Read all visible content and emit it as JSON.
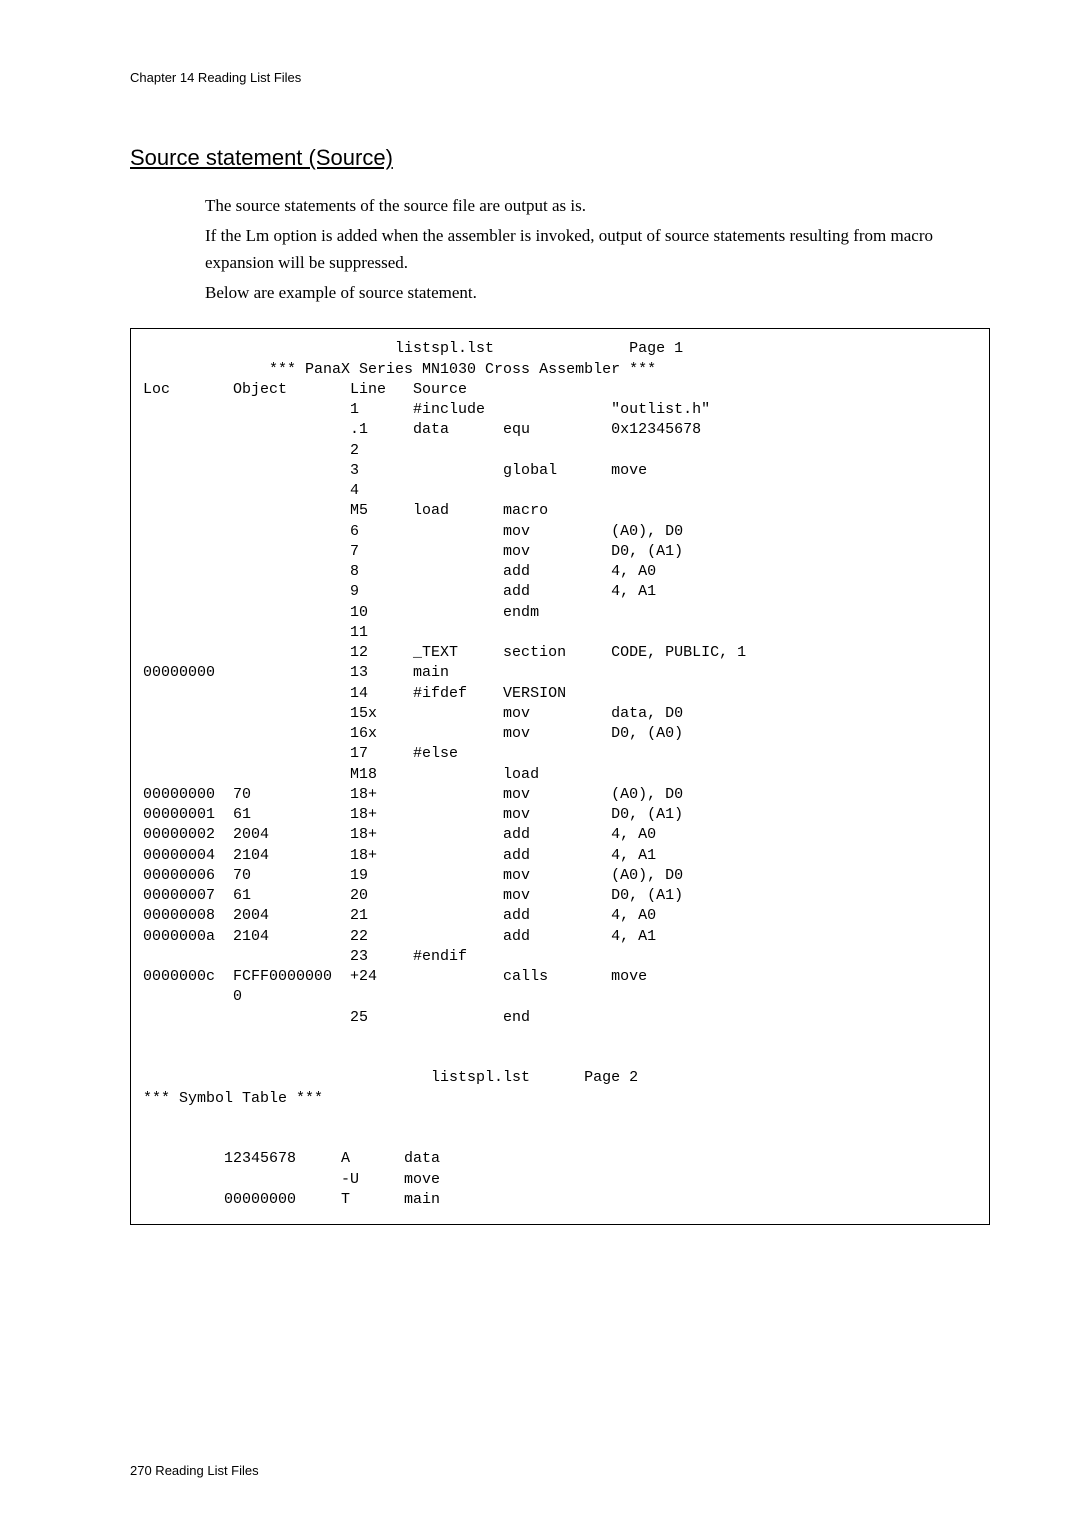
{
  "chapter_header": "Chapter 14  Reading List Files",
  "section_title": "Source statement (Source)",
  "paragraphs": {
    "p1": "The source statements of the source file are output as is.",
    "p2": "If the Lm option is added when the assembler is invoked, output of source statements resulting from macro expansion will be suppressed.",
    "p3": "Below are example of source statement."
  },
  "listing": {
    "header_top_left": "listspl.lst",
    "header_top_right": "Page 1",
    "header_series": "*** PanaX Series MN1030 Cross Assembler ***",
    "col_headers": {
      "loc": "Loc",
      "object": "Object",
      "line": "Line",
      "source": "Source"
    },
    "rows": [
      {
        "loc": "",
        "obj": "",
        "line": "1",
        "src": "#include",
        "op": "",
        "arg": "\"outlist.h\""
      },
      {
        "loc": "",
        "obj": "",
        "line": ".1",
        "src": "data",
        "op": "equ",
        "arg": "0x12345678"
      },
      {
        "loc": "",
        "obj": "",
        "line": "2",
        "src": "",
        "op": "",
        "arg": ""
      },
      {
        "loc": "",
        "obj": "",
        "line": "3",
        "src": "",
        "op": "global",
        "arg": "move"
      },
      {
        "loc": "",
        "obj": "",
        "line": "4",
        "src": "",
        "op": "",
        "arg": ""
      },
      {
        "loc": "",
        "obj": "",
        "line": "M5",
        "src": "load",
        "op": "macro",
        "arg": ""
      },
      {
        "loc": "",
        "obj": "",
        "line": "6",
        "src": "",
        "op": "mov",
        "arg": "(A0), D0"
      },
      {
        "loc": "",
        "obj": "",
        "line": "7",
        "src": "",
        "op": "mov",
        "arg": "D0, (A1)"
      },
      {
        "loc": "",
        "obj": "",
        "line": "8",
        "src": "",
        "op": "add",
        "arg": "4, A0"
      },
      {
        "loc": "",
        "obj": "",
        "line": "9",
        "src": "",
        "op": "add",
        "arg": "4, A1"
      },
      {
        "loc": "",
        "obj": "",
        "line": "10",
        "src": "",
        "op": "endm",
        "arg": ""
      },
      {
        "loc": "",
        "obj": "",
        "line": "11",
        "src": "",
        "op": "",
        "arg": ""
      },
      {
        "loc": "",
        "obj": "",
        "line": "12",
        "src": "_TEXT",
        "op": "section",
        "arg": "CODE, PUBLIC, 1"
      },
      {
        "loc": "00000000",
        "obj": "",
        "line": "13",
        "src": "main",
        "op": "",
        "arg": ""
      },
      {
        "loc": "",
        "obj": "",
        "line": "14",
        "src": "#ifdef",
        "op": "VERSION",
        "arg": ""
      },
      {
        "loc": "",
        "obj": "",
        "line": "15x",
        "src": "",
        "op": "mov",
        "arg": "data, D0"
      },
      {
        "loc": "",
        "obj": "",
        "line": "16x",
        "src": "",
        "op": "mov",
        "arg": "D0, (A0)"
      },
      {
        "loc": "",
        "obj": "",
        "line": "17",
        "src": "#else",
        "op": "",
        "arg": ""
      },
      {
        "loc": "",
        "obj": "",
        "line": "M18",
        "src": "",
        "op": "load",
        "arg": ""
      },
      {
        "loc": "00000000",
        "obj": "70",
        "line": "18+",
        "src": "",
        "op": "mov",
        "arg": "(A0), D0"
      },
      {
        "loc": "00000001",
        "obj": "61",
        "line": "18+",
        "src": "",
        "op": "mov",
        "arg": "D0, (A1)"
      },
      {
        "loc": "00000002",
        "obj": "2004",
        "line": "18+",
        "src": "",
        "op": "add",
        "arg": "4, A0"
      },
      {
        "loc": "00000004",
        "obj": "2104",
        "line": "18+",
        "src": "",
        "op": "add",
        "arg": "4, A1"
      },
      {
        "loc": "00000006",
        "obj": "70",
        "line": "19",
        "src": "",
        "op": "mov",
        "arg": "(A0), D0"
      },
      {
        "loc": "00000007",
        "obj": "61",
        "line": "20",
        "src": "",
        "op": "mov",
        "arg": "D0, (A1)"
      },
      {
        "loc": "00000008",
        "obj": "2004",
        "line": "21",
        "src": "",
        "op": "add",
        "arg": "4, A0"
      },
      {
        "loc": "0000000a",
        "obj": "2104",
        "line": "22",
        "src": "",
        "op": "add",
        "arg": "4, A1"
      },
      {
        "loc": "",
        "obj": "",
        "line": "23",
        "src": "#endif",
        "op": "",
        "arg": ""
      },
      {
        "loc": "0000000c",
        "obj": "FCFF0000000",
        "line": "+24",
        "src": "",
        "op": "calls",
        "arg": "move"
      },
      {
        "loc": "",
        "obj": "0",
        "line": "",
        "src": "",
        "op": "",
        "arg": ""
      },
      {
        "loc": "",
        "obj": "",
        "line": "25",
        "src": "",
        "op": "end",
        "arg": ""
      }
    ],
    "page2_title_left": "listspl.lst",
    "page2_title_right": "Page 2",
    "symbol_table_header": "*** Symbol Table ***",
    "symbols": [
      {
        "addr": "12345678",
        "flag": "A",
        "name": "data"
      },
      {
        "addr": "",
        "flag": "-U",
        "name": "move"
      },
      {
        "addr": "00000000",
        "flag": "T",
        "name": "main"
      }
    ]
  },
  "footer": "270  Reading List Files"
}
